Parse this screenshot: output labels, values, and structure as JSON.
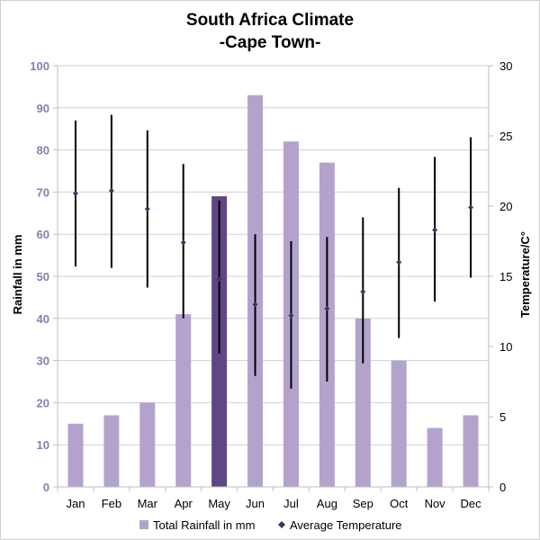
{
  "chart_data": {
    "type": "bar",
    "title": "South Africa Climate",
    "subtitle": "-Cape Town-",
    "categories": [
      "Jan",
      "Feb",
      "Mar",
      "Apr",
      "May",
      "Jun",
      "Jul",
      "Aug",
      "Sep",
      "Oct",
      "Nov",
      "Dec"
    ],
    "ylabel": "Rainfall in mm",
    "y2label": "Temperature/C°",
    "ylim": [
      0,
      100
    ],
    "y2lim": [
      0,
      30
    ],
    "yticks": [
      "0",
      "10",
      "20",
      "30",
      "40",
      "50",
      "60",
      "70",
      "80",
      "90",
      "100"
    ],
    "y2ticks": [
      "0",
      "5",
      "10",
      "15",
      "20",
      "25",
      "30"
    ],
    "grid": true,
    "legend_position": "bottom",
    "series": [
      {
        "name": "Total Rainfall in mm",
        "type": "bar",
        "axis": "left",
        "values": [
          15,
          17,
          20,
          41,
          69,
          93,
          82,
          77,
          40,
          30,
          14,
          17
        ],
        "color": "#b3a3cc",
        "highlight_index": 4,
        "highlight_color": "#5f4685"
      },
      {
        "name": "Average Temperature",
        "type": "scatter",
        "axis": "right",
        "values": [
          20.9,
          21.1,
          19.8,
          17.4,
          14.8,
          13.0,
          12.2,
          12.7,
          13.9,
          16.0,
          18.3,
          19.9
        ],
        "range_low": [
          15.7,
          15.6,
          14.2,
          12.0,
          9.5,
          7.9,
          7.0,
          7.5,
          8.8,
          10.6,
          13.2,
          14.9
        ],
        "range_high": [
          26.1,
          26.5,
          25.4,
          23.0,
          20.4,
          18.0,
          17.5,
          17.8,
          19.2,
          21.3,
          23.5,
          24.9
        ],
        "color": "#3d3560"
      }
    ]
  }
}
